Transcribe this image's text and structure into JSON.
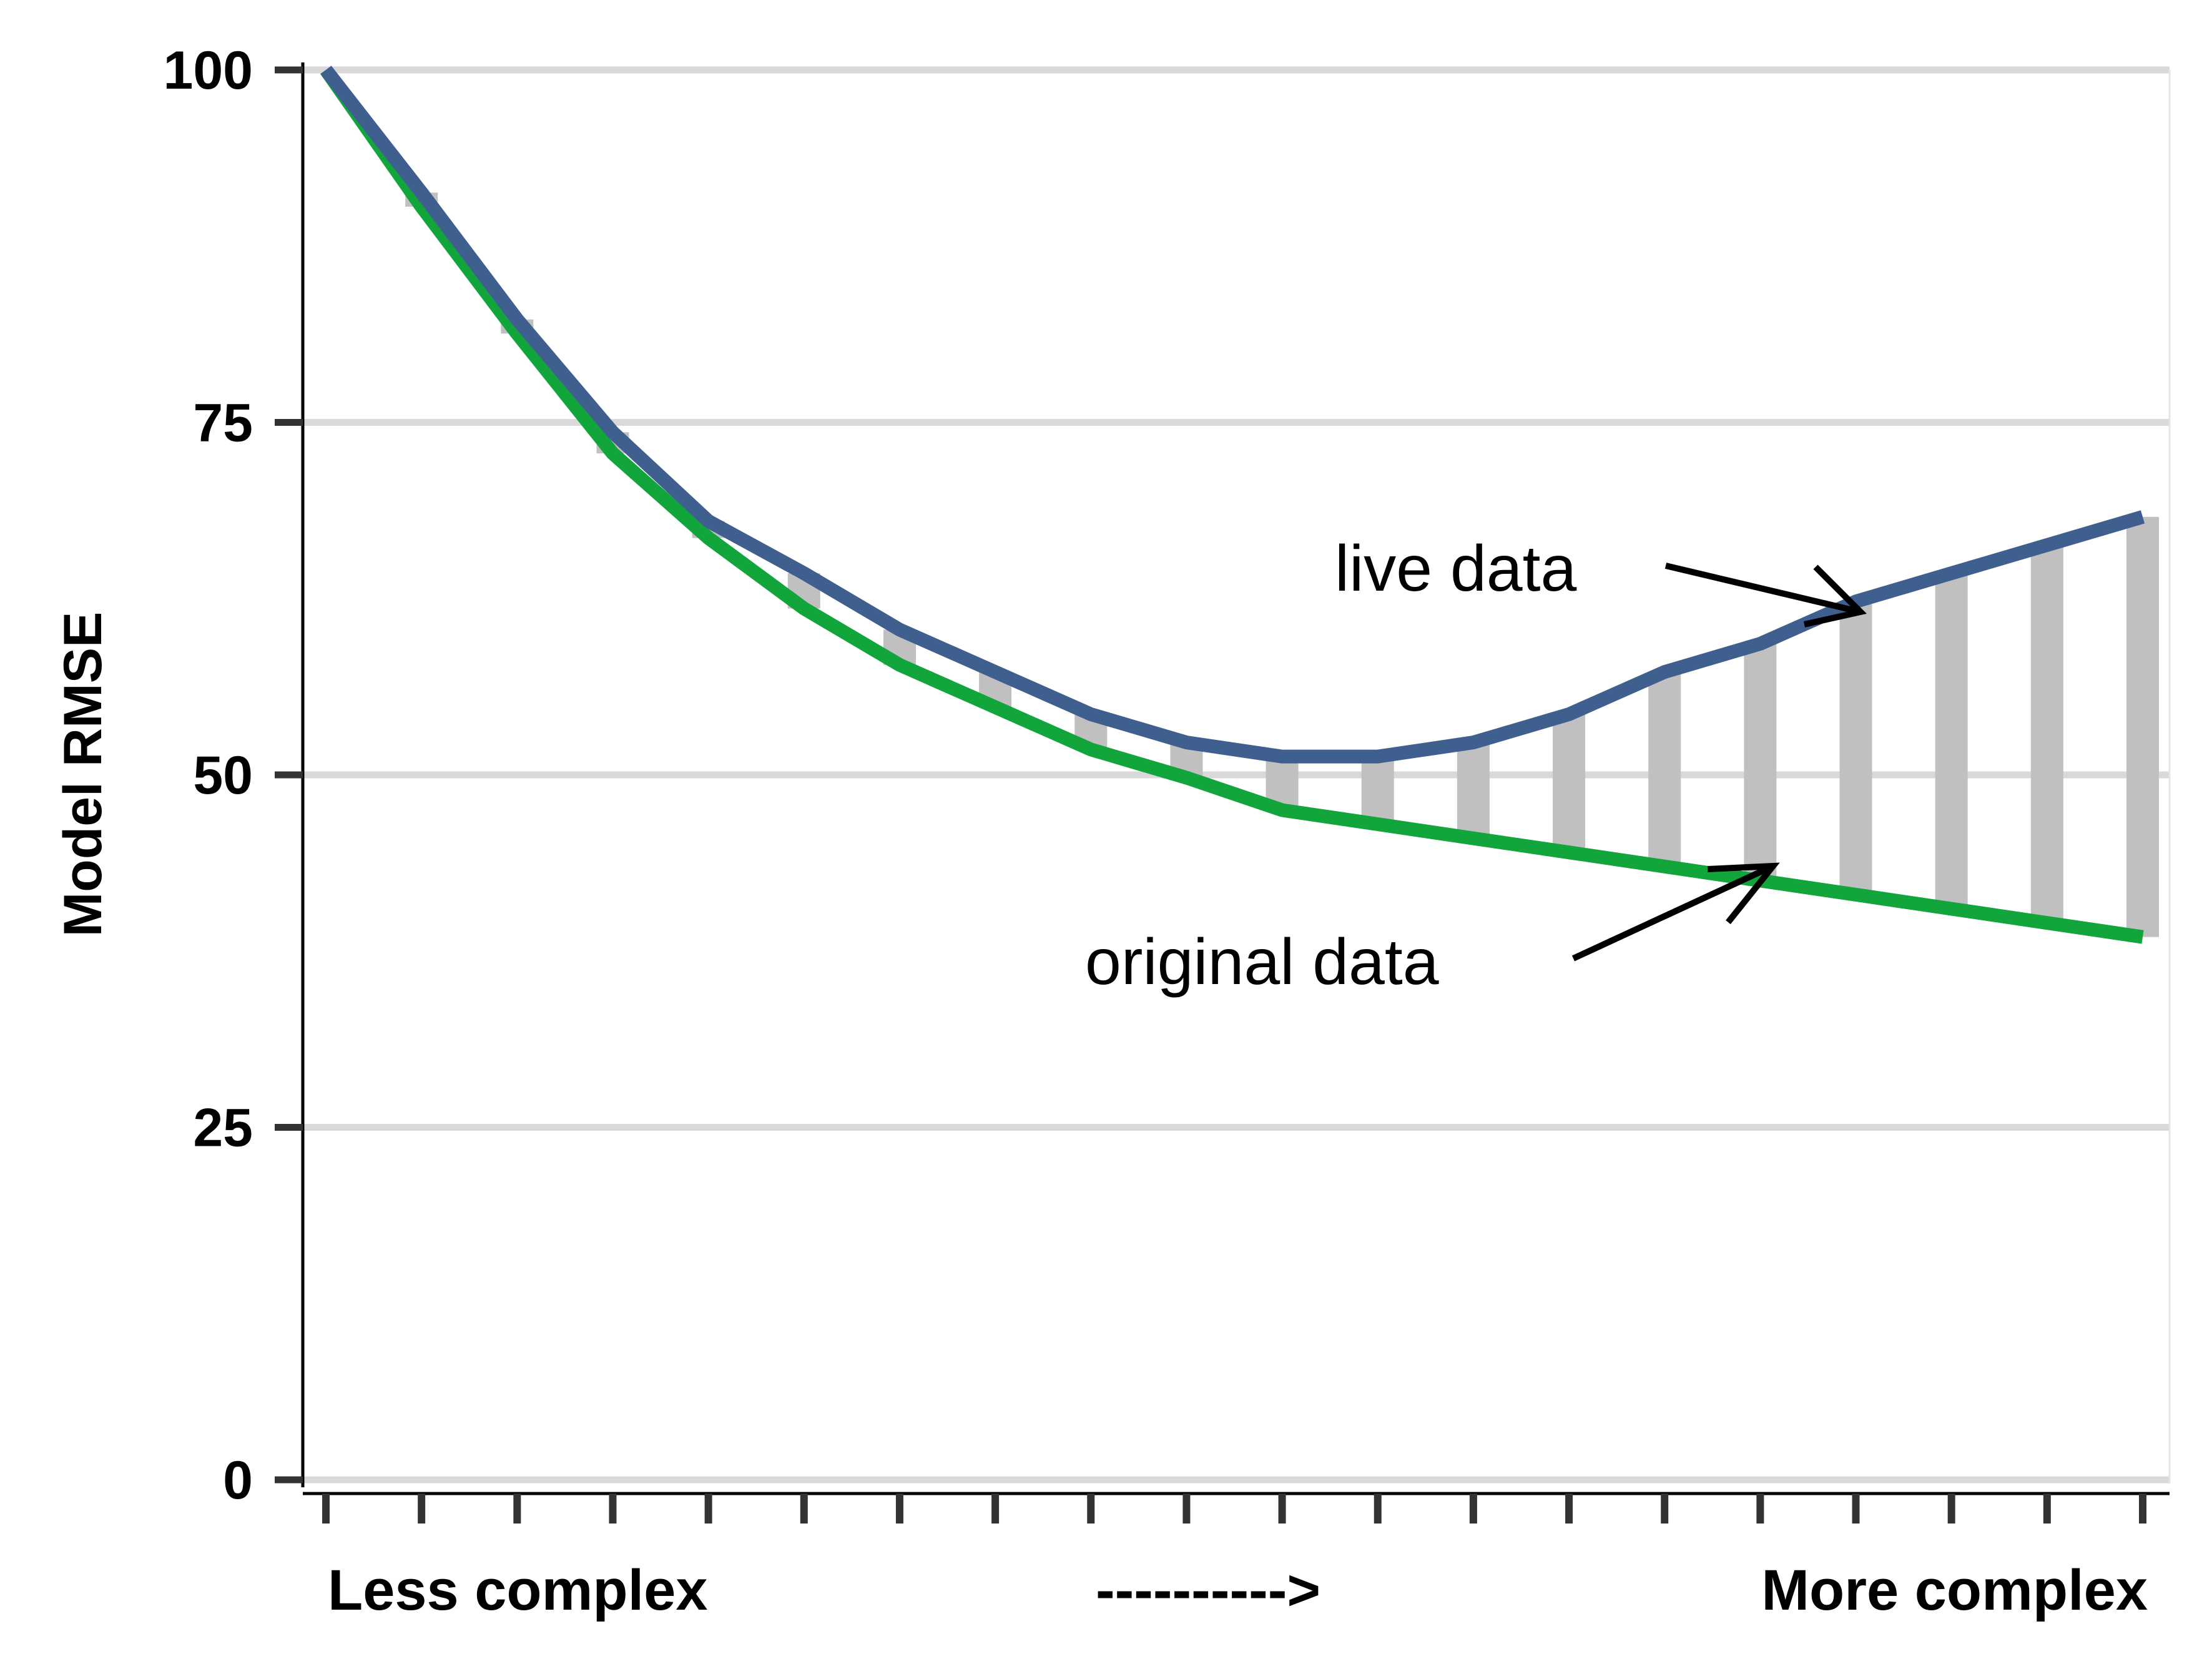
{
  "chart_data": {
    "type": "line",
    "ylabel": "Model RMSE",
    "ylim": [
      0,
      100
    ],
    "yticks": [
      0,
      25,
      50,
      75,
      100
    ],
    "y_tick_labels": [
      "0",
      "25",
      "50",
      "75",
      "100"
    ],
    "grid": "horizontal",
    "x": [
      1,
      2,
      3,
      4,
      5,
      6,
      7,
      8,
      9,
      10,
      11,
      12,
      13,
      14,
      15,
      16,
      17,
      18,
      19,
      20
    ],
    "x_labels": {
      "left": "Less complex",
      "center": "---------->",
      "right": "More complex"
    },
    "series": [
      {
        "name": "live data",
        "color": "#3f5f8f",
        "values": [
          100,
          91.3,
          82.3,
          74.3,
          68,
          64.3,
          60.3,
          57.3,
          54.3,
          52.3,
          51.3,
          51.3,
          52.3,
          54.3,
          57.3,
          59.3,
          62.3,
          64.3,
          66.3,
          68.3
        ]
      },
      {
        "name": "original data",
        "color": "#12a53c",
        "values": [
          100,
          90.3,
          81.3,
          72.8,
          66.8,
          61.8,
          57.8,
          54.8,
          51.8,
          49.8,
          47.5,
          46.5,
          45.5,
          44.5,
          43.5,
          42.5,
          41.5,
          40.5,
          39.5,
          38.5
        ]
      }
    ],
    "gap_bars_color": "#c0c0c0",
    "annotations": [
      {
        "text": "live data",
        "target_series": "live data",
        "target_x": 17
      },
      {
        "text": "original data",
        "target_series": "original data",
        "target_x": 16
      }
    ]
  }
}
